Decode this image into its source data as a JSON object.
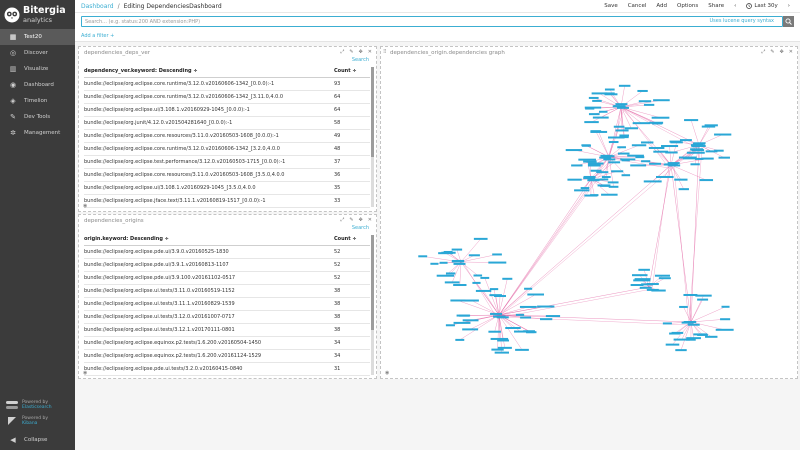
{
  "brand": {
    "name": "Bitergia",
    "sub": "analytics"
  },
  "sidebar": {
    "items": [
      {
        "label": "Test20",
        "icon": "dashboard-icon",
        "glyph": "▦"
      },
      {
        "label": "Discover",
        "icon": "compass-icon",
        "glyph": "◎"
      },
      {
        "label": "Visualize",
        "icon": "bar-chart-icon",
        "glyph": "▥"
      },
      {
        "label": "Dashboard",
        "icon": "dashboard-icon",
        "glyph": "◉"
      },
      {
        "label": "Timelion",
        "icon": "shield-icon",
        "glyph": "◈"
      },
      {
        "label": "Dev Tools",
        "icon": "wrench-icon",
        "glyph": "✎"
      },
      {
        "label": "Management",
        "icon": "gear-icon",
        "glyph": "✲"
      }
    ],
    "powered1": {
      "prefix": "Powered by",
      "name": "Elasticsearch"
    },
    "powered2": {
      "prefix": "Powered by",
      "name": "Kibana"
    },
    "collapse": "Collapse"
  },
  "topbar": {
    "breadcrumb_link": "Dashboard",
    "breadcrumb_sep": "/",
    "breadcrumb_current": "Editing DependenciesDashboard",
    "actions": [
      "Save",
      "Cancel",
      "Add",
      "Options",
      "Share"
    ],
    "time": "Last 30y",
    "time_icon": "clock-icon"
  },
  "query": {
    "placeholder": "Search... (e.g. status:200 AND extension:PHP)",
    "value": "",
    "syntax_link": "Uses lucene query syntax",
    "search_icon": "search-icon"
  },
  "filter": {
    "add_label": "Add a filter +"
  },
  "panel1": {
    "title": "dependencies_deps_ver",
    "search": "Search",
    "columns": [
      "dependency_ver.keyword: Descending ÷",
      "Count ÷"
    ],
    "rows": [
      [
        "bundle://eclipse/org.eclipse.core.runtime/3.12.0.v20160606-1342_[0.0.0):-1",
        "93"
      ],
      [
        "bundle://eclipse/org.eclipse.core.runtime/3.12.0.v20160606-1342_[3.11.0,4.0.0",
        "64"
      ],
      [
        "bundle://eclipse/org.eclipse.ui/3.108.1.v20160929-1045_[0.0.0):-1",
        "64"
      ],
      [
        "bundle://eclipse/org.junit/4.12.0.v201504281640_[0.0.0):-1",
        "58"
      ],
      [
        "bundle://eclipse/org.eclipse.core.resources/3.11.0.v20160503-1608_[0.0.0):-1",
        "49"
      ],
      [
        "bundle://eclipse/org.eclipse.core.runtime/3.12.0.v20160606-1342_[3.2.0,4.0.0",
        "48"
      ],
      [
        "bundle://eclipse/org.eclipse.test.performance/3.12.0.v20160503-1715_[0.0.0):-1",
        "37"
      ],
      [
        "bundle://eclipse/org.eclipse.core.resources/3.11.0.v20160503-1608_[3.5.0,4.0.0",
        "36"
      ],
      [
        "bundle://eclipse/org.eclipse.ui/3.108.1.v20160929-1045_[3.5.0,4.0.0",
        "35"
      ],
      [
        "bundle://eclipse/org.eclipse.jface.text/3.11.1.v20160819-1517_[0.0.0):-1",
        "33"
      ]
    ]
  },
  "panel2": {
    "title": "dependencies_origins",
    "search": "Search",
    "columns": [
      "origin.keyword: Descending ÷",
      "Count ÷"
    ],
    "rows": [
      [
        "bundle://eclipse/org.eclipse.pde.ui/3.9.0.v20160525-1830",
        "52"
      ],
      [
        "bundle://eclipse/org.eclipse.pde.ui/3.9.1.v20160813-1107",
        "52"
      ],
      [
        "bundle://eclipse/org.eclipse.pde.ui/3.9.100.v20161102-0517",
        "52"
      ],
      [
        "bundle://eclipse/org.eclipse.ui.tests/3.11.0.v20160519-1152",
        "38"
      ],
      [
        "bundle://eclipse/org.eclipse.ui.tests/3.11.1.v20160829-1539",
        "38"
      ],
      [
        "bundle://eclipse/org.eclipse.ui.tests/3.12.0.v20161007-0717",
        "38"
      ],
      [
        "bundle://eclipse/org.eclipse.ui.tests/3.12.1.v20170111-0801",
        "38"
      ],
      [
        "bundle://eclipse/org.eclipse.equinox.p2.tests/1.6.200.v20160504-1450",
        "34"
      ],
      [
        "bundle://eclipse/org.eclipse.equinox.p2.tests/1.6.200.v20161124-1529",
        "34"
      ],
      [
        "bundle://eclipse/org.eclipse.pde.ui.tests/3.2.0.v20160415-0840",
        "31"
      ]
    ]
  },
  "panel3": {
    "title": "dependencies_origin.dependencies graph",
    "node_color": "#2aa7d6",
    "edge_color": "#e0559a"
  },
  "colors": {
    "accent": "#3caed2",
    "sidebar": "#3b3b3b"
  }
}
